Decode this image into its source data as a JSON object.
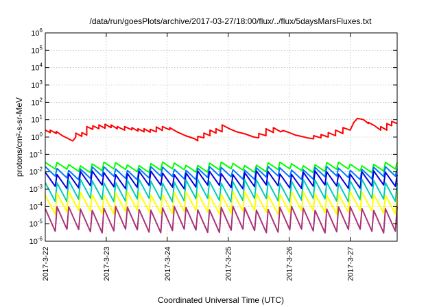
{
  "chart_data": {
    "type": "line",
    "title": "/data/run/goesPlots/archive/2017-03-27/18:00/flux/../flux/5daysMarsFluxes.txt",
    "xlabel": "Coordinated Universal Time (UTC)",
    "ylabel": "protons/cm²-s-sr-MeV",
    "y_scale": "log",
    "ylim": [
      1e-06,
      1000000.0
    ],
    "xlim": [
      0,
      5.77
    ],
    "y_ticks": [
      {
        "base": "10",
        "exp": "-6",
        "value": 1e-06
      },
      {
        "base": "10",
        "exp": "-5",
        "value": 1e-05
      },
      {
        "base": "10",
        "exp": "-4",
        "value": 0.0001
      },
      {
        "base": "10",
        "exp": "-3",
        "value": 0.001
      },
      {
        "base": "10",
        "exp": "-2",
        "value": 0.01
      },
      {
        "base": "10",
        "exp": "-1",
        "value": 0.1
      },
      {
        "base": "10",
        "exp": "0",
        "value": 1
      },
      {
        "base": "10",
        "exp": "1",
        "value": 10
      },
      {
        "base": "10",
        "exp": "2",
        "value": 100
      },
      {
        "base": "10",
        "exp": "3",
        "value": 1000
      },
      {
        "base": "10",
        "exp": "4",
        "value": 10000
      },
      {
        "base": "10",
        "exp": "5",
        "value": 100000
      },
      {
        "base": "10",
        "exp": "6",
        "value": 1000000
      }
    ],
    "x_ticks": [
      {
        "label": "2017-3-22",
        "value": 0
      },
      {
        "label": "2017-3-23",
        "value": 1
      },
      {
        "label": "2017-3-24",
        "value": 2
      },
      {
        "label": "2017-3-25",
        "value": 3
      },
      {
        "label": "2017-3-26",
        "value": 4
      },
      {
        "label": "2017-3-27",
        "value": 5
      }
    ],
    "grid": true,
    "series": [
      {
        "color": "#ff0000",
        "x": [
          0,
          0.08,
          0.08,
          0.18,
          0.18,
          0.28,
          0.38,
          0.45,
          0.5,
          0.5,
          0.6,
          0.6,
          0.68,
          0.68,
          0.78,
          0.78,
          0.88,
          0.88,
          0.98,
          0.98,
          1.08,
          1.08,
          1.18,
          1.18,
          1.3,
          1.3,
          1.42,
          1.42,
          1.52,
          1.52,
          1.62,
          1.62,
          1.72,
          1.72,
          1.82,
          1.82,
          1.92,
          1.92,
          2.04,
          2.04,
          2.16,
          2.3,
          2.45,
          2.5,
          2.5,
          2.6,
          2.6,
          2.7,
          2.7,
          2.8,
          2.8,
          2.9,
          2.9,
          3.02,
          3.14,
          3.28,
          3.42,
          3.5,
          3.5,
          3.62,
          3.62,
          3.74,
          3.74,
          3.86,
          3.9,
          4.0,
          4.1,
          4.2,
          4.3,
          4.4,
          4.4,
          4.52,
          4.52,
          4.64,
          4.64,
          4.76,
          4.76,
          4.88,
          4.88,
          5.0,
          5.06,
          5.12,
          5.22,
          5.3,
          5.3,
          5.4,
          5.5,
          5.5,
          5.6,
          5.6,
          5.68,
          5.68,
          5.77
        ],
        "y": [
          2.5,
          1.8,
          2.5,
          1.6,
          2.1,
          1.2,
          0.8,
          0.6,
          1.0,
          1.7,
          1.1,
          1.8,
          1.3,
          4.0,
          2.8,
          4.5,
          3.0,
          5.0,
          3.2,
          5.5,
          3.5,
          5.0,
          3.0,
          4.0,
          2.5,
          4.0,
          2.6,
          3.5,
          2.2,
          3.0,
          2.0,
          3.0,
          1.9,
          2.8,
          2.0,
          3.8,
          2.4,
          4.0,
          2.6,
          3.5,
          2.0,
          1.2,
          0.8,
          0.6,
          1.1,
          0.9,
          1.7,
          1.2,
          2.5,
          1.7,
          3.0,
          2.0,
          5.0,
          3.0,
          2.0,
          1.5,
          1.0,
          0.9,
          1.6,
          1.2,
          3.0,
          1.8,
          3.5,
          2.0,
          2.4,
          1.8,
          1.3,
          1.1,
          0.9,
          0.8,
          1.2,
          0.9,
          1.4,
          1.0,
          1.8,
          1.2,
          2.5,
          1.6,
          3.5,
          2.5,
          7.0,
          12.0,
          10.0,
          6.0,
          7.0,
          4.5,
          2.5,
          4.0,
          2.5,
          6.0,
          4.5,
          8.0,
          6.0
        ]
      },
      {
        "color": "#00ff00",
        "base": 0.02,
        "amp": 0.009,
        "cycles": 30
      },
      {
        "color": "#0077ff",
        "base": 0.01,
        "amp": 0.006,
        "cycles": 30
      },
      {
        "color": "#0000dd",
        "base": 0.005,
        "amp": 0.004,
        "cycles": 30
      },
      {
        "color": "#00ccbb",
        "base": 0.0015,
        "amp": 0.0014,
        "cycles": 30
      },
      {
        "color": "#ffff00",
        "base": 0.0003,
        "amp": 0.00028,
        "cycles": 30
      },
      {
        "color": "#aa3377",
        "base": 4e-05,
        "amp": 4e-05,
        "cycles": 30
      }
    ]
  }
}
